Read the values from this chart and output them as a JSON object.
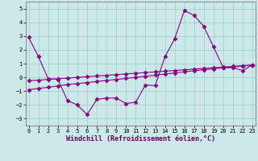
{
  "xlabel": "Windchill (Refroidissement éolien,°C)",
  "background_color": "#cce8e8",
  "line_color": "#880088",
  "xlim": [
    -0.3,
    23.3
  ],
  "ylim": [
    -3.5,
    5.5
  ],
  "yticks": [
    -3,
    -2,
    -1,
    0,
    1,
    2,
    3,
    4,
    5
  ],
  "xticks": [
    0,
    1,
    2,
    3,
    4,
    5,
    6,
    7,
    8,
    9,
    10,
    11,
    12,
    13,
    14,
    15,
    16,
    17,
    18,
    19,
    20,
    21,
    22,
    23
  ],
  "line1_x": [
    0,
    1,
    2,
    3,
    4,
    5,
    6,
    7,
    8,
    9,
    10,
    11,
    12,
    13,
    14,
    15,
    16,
    17,
    18,
    19,
    20,
    21,
    22,
    23
  ],
  "line1_y": [
    2.9,
    1.5,
    -0.1,
    -0.15,
    -1.7,
    -2.0,
    -2.7,
    -1.6,
    -1.5,
    -1.5,
    -1.9,
    -1.8,
    -0.55,
    -0.6,
    1.5,
    2.8,
    4.85,
    4.5,
    3.7,
    2.2,
    0.7,
    0.7,
    0.5,
    0.9
  ],
  "line2_x": [
    0,
    1,
    2,
    3,
    4,
    5,
    6,
    7,
    8,
    9,
    10,
    11,
    12,
    13,
    14,
    15,
    16,
    17,
    18,
    19,
    20,
    21,
    22,
    23
  ],
  "line2_y": [
    -0.9,
    -0.8,
    -0.72,
    -0.62,
    -0.52,
    -0.45,
    -0.38,
    -0.3,
    -0.22,
    -0.15,
    -0.08,
    0.0,
    0.08,
    0.16,
    0.24,
    0.32,
    0.4,
    0.48,
    0.55,
    0.62,
    0.7,
    0.75,
    0.82,
    0.88
  ],
  "line3_x": [
    0,
    1,
    2,
    3,
    4,
    5,
    6,
    7,
    8,
    9,
    10,
    11,
    12,
    13,
    14,
    15,
    16,
    17,
    18,
    19,
    20,
    21,
    22,
    23
  ],
  "line3_y": [
    -0.25,
    -0.2,
    -0.15,
    -0.1,
    -0.05,
    0.0,
    0.05,
    0.1,
    0.15,
    0.2,
    0.25,
    0.3,
    0.35,
    0.4,
    0.45,
    0.5,
    0.55,
    0.6,
    0.65,
    0.7,
    0.75,
    0.8,
    0.85,
    0.9
  ],
  "grid_color": "#99cccc",
  "tick_fontsize": 5,
  "xlabel_fontsize": 6
}
